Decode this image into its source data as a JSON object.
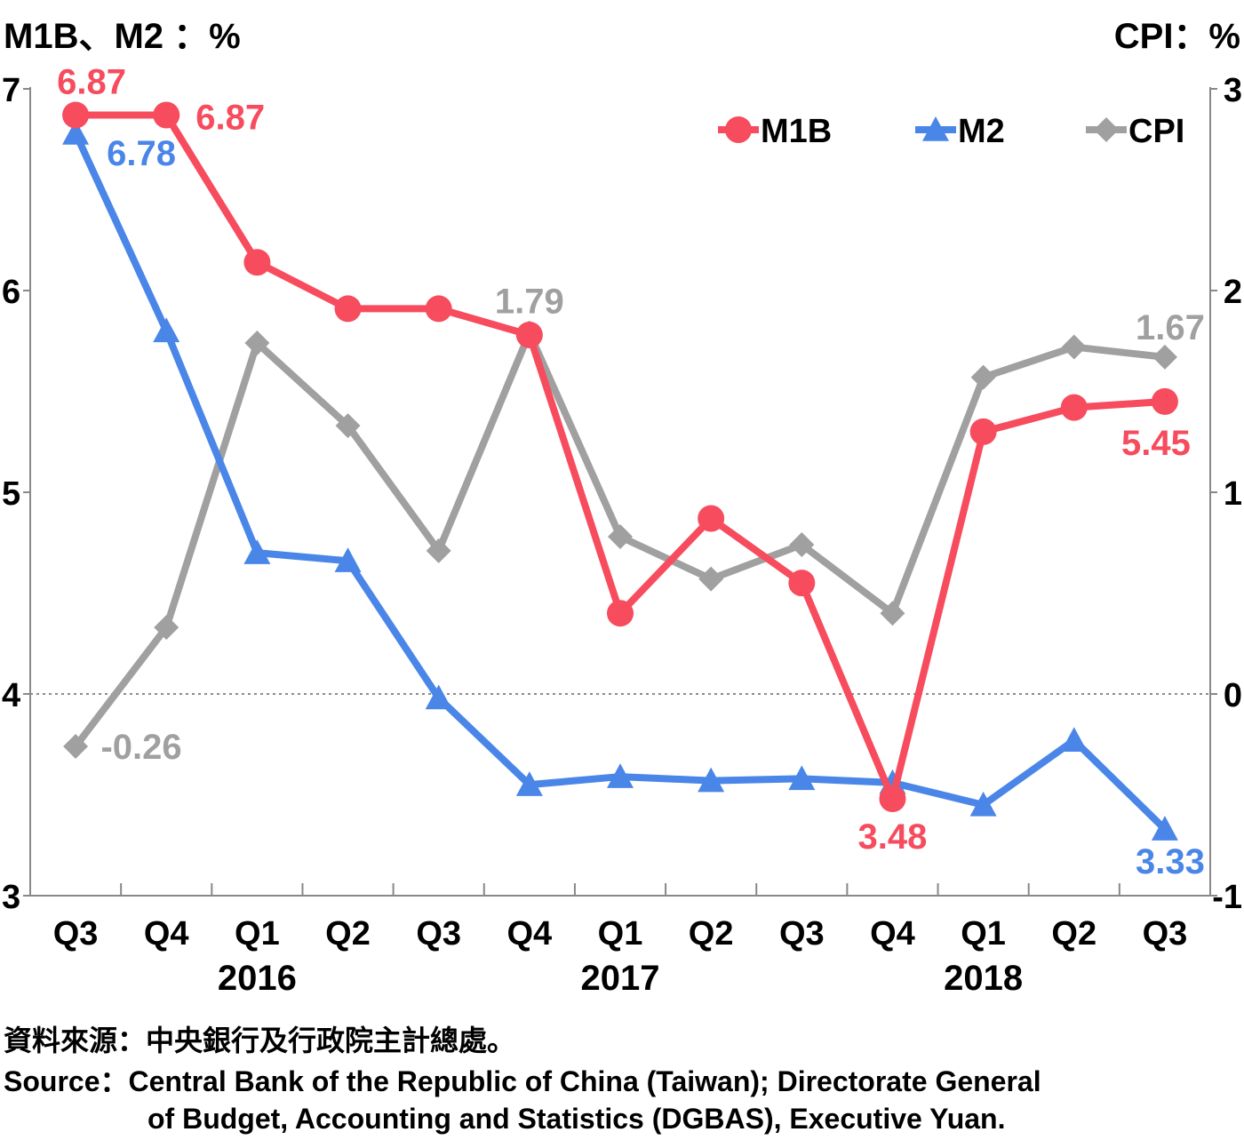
{
  "chart_data": {
    "type": "line",
    "ylabel_left": "M1B、M2 ：%",
    "ylabel_right": "CPI：%",
    "categories": [
      "Q3",
      "Q4",
      "Q1",
      "Q2",
      "Q3",
      "Q4",
      "Q1",
      "Q2",
      "Q3",
      "Q4",
      "Q1",
      "Q2",
      "Q3"
    ],
    "years": [
      {
        "label": "2016",
        "center_index": 2
      },
      {
        "label": "2017",
        "center_index": 6
      },
      {
        "label": "2018",
        "center_index": 10
      }
    ],
    "y_left": {
      "min": 3,
      "max": 7,
      "ticks": [
        "3",
        "4",
        "5",
        "6",
        "7"
      ]
    },
    "y_right": {
      "min": -1,
      "max": 3,
      "ticks": [
        "-1",
        "0",
        "1",
        "2",
        "3"
      ]
    },
    "zero_reference_line": true,
    "legend_position": "top-right",
    "series": [
      {
        "name": "M1B",
        "axis": "left",
        "color": "#f64c5e",
        "marker": "circle",
        "values": [
          6.87,
          6.87,
          6.14,
          5.91,
          5.91,
          5.78,
          4.4,
          4.87,
          4.55,
          3.48,
          5.3,
          5.42,
          5.45
        ],
        "labels": [
          {
            "index": 0,
            "text": "6.87"
          },
          {
            "index": 1,
            "text": "6.87"
          },
          {
            "index": 9,
            "text": "3.48"
          },
          {
            "index": 12,
            "text": "5.45"
          }
        ]
      },
      {
        "name": "M2",
        "axis": "left",
        "color": "#4a86e8",
        "marker": "triangle",
        "values": [
          6.78,
          5.8,
          4.7,
          4.66,
          3.98,
          3.55,
          3.59,
          3.57,
          3.58,
          3.56,
          3.45,
          3.77,
          3.33
        ],
        "labels": [
          {
            "index": 0,
            "text": "6.78"
          },
          {
            "index": 12,
            "text": "3.33"
          }
        ]
      },
      {
        "name": "CPI",
        "axis": "right",
        "color": "#a0a0a0",
        "marker": "diamond",
        "values": [
          -0.26,
          0.33,
          1.74,
          1.33,
          0.71,
          1.79,
          0.78,
          0.57,
          0.74,
          0.4,
          1.57,
          1.72,
          1.67
        ],
        "labels": [
          {
            "index": 0,
            "text": "-0.26"
          },
          {
            "index": 5,
            "text": "1.79"
          },
          {
            "index": 12,
            "text": "1.67"
          }
        ]
      }
    ]
  },
  "source": {
    "zh": "資料來源：中央銀行及行政院主計總處。",
    "en_line1": "Source：Central Bank of the Republic of China (Taiwan); Directorate General",
    "en_line2": "of Budget, Accounting and Statistics (DGBAS), Executive Yuan."
  }
}
